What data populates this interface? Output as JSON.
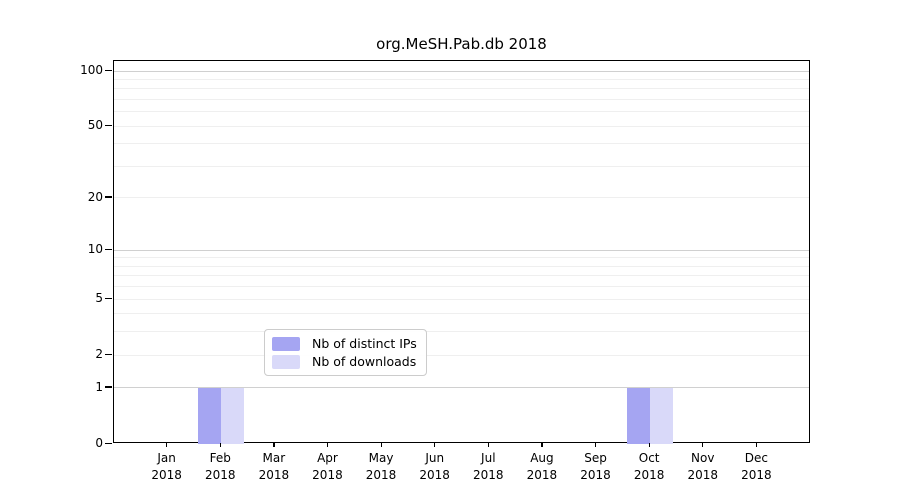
{
  "title": "org.MeSH.Pab.db 2018",
  "chart_data": {
    "type": "bar",
    "title": "org.MeSH.Pab.db 2018",
    "categories": [
      "Jan 2018",
      "Feb 2018",
      "Mar 2018",
      "Apr 2018",
      "May 2018",
      "Jun 2018",
      "Jul 2018",
      "Aug 2018",
      "Sep 2018",
      "Oct 2018",
      "Nov 2018",
      "Dec 2018"
    ],
    "series": [
      {
        "name": "Nb of distinct IPs",
        "color": "#a5a5f2",
        "values": [
          0,
          1,
          0,
          0,
          0,
          0,
          0,
          0,
          0,
          1,
          0,
          0
        ]
      },
      {
        "name": "Nb of downloads",
        "color": "#d9d9f9",
        "values": [
          0,
          1,
          0,
          0,
          0,
          0,
          0,
          0,
          0,
          1,
          0,
          0
        ]
      }
    ],
    "xlabel": "",
    "ylabel": "",
    "yscale": "log1p",
    "ylim": [
      0,
      113
    ],
    "y_tick_values": [
      0,
      1,
      2,
      5,
      10,
      20,
      50,
      100
    ],
    "grid_major_values": [
      1,
      10,
      100
    ],
    "grid_minor_values": [
      2,
      3,
      4,
      5,
      6,
      7,
      8,
      9,
      20,
      30,
      40,
      50,
      60,
      70,
      80,
      90
    ],
    "grid": "horizontal",
    "legend_position": "lower center"
  },
  "colors": {
    "grid_major": "#d0d0d0",
    "grid_minor": "#efefef",
    "spine": "#000000",
    "legend_border": "#cccccc",
    "background": "#ffffff"
  }
}
